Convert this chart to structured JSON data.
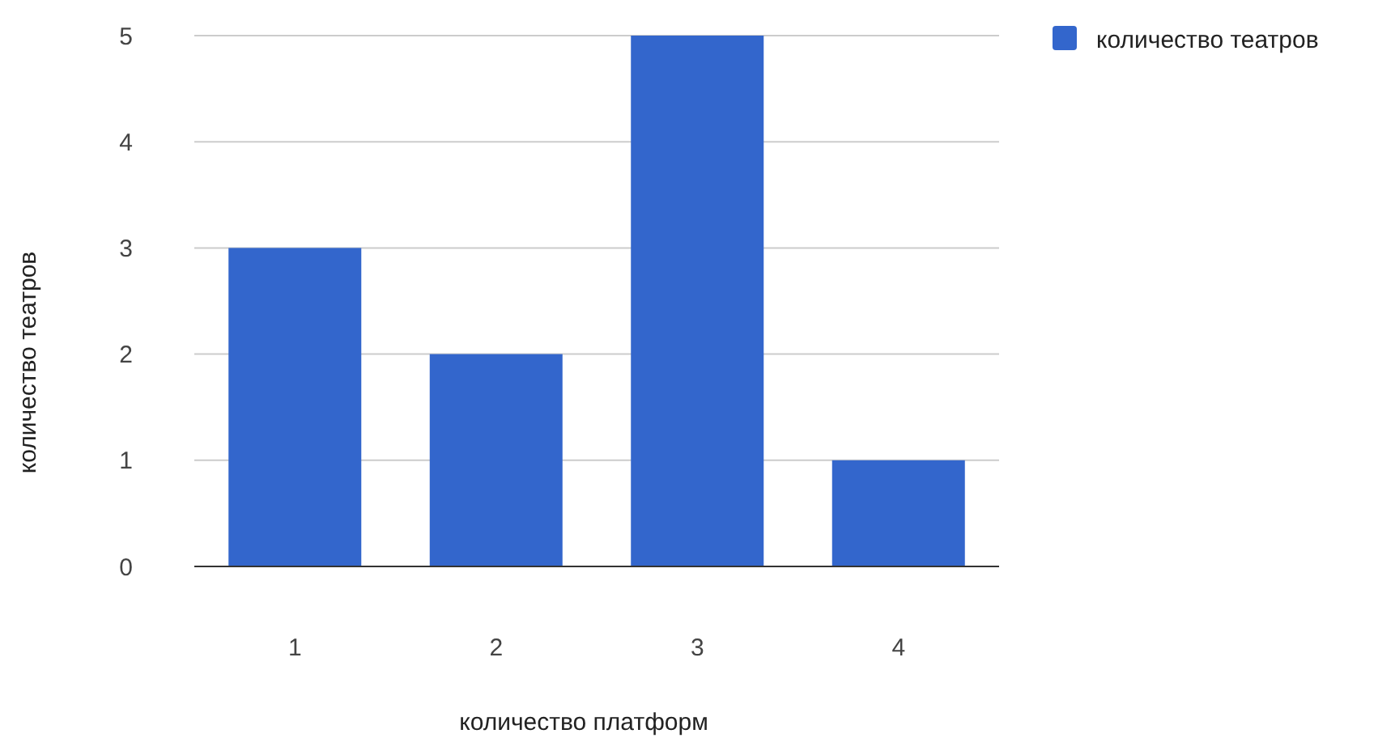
{
  "chart_data": {
    "type": "bar",
    "xlabel": "количество платформ",
    "ylabel": "количество театров",
    "categories": [
      "1",
      "2",
      "3",
      "4"
    ],
    "series": [
      {
        "name": "количество театров",
        "color": "#3366cc",
        "values": [
          3,
          2,
          5,
          1
        ]
      }
    ],
    "ylim": [
      0,
      5
    ],
    "yticks": [
      0,
      1,
      2,
      3,
      4,
      5
    ],
    "grid": "y",
    "legend": "top right"
  }
}
